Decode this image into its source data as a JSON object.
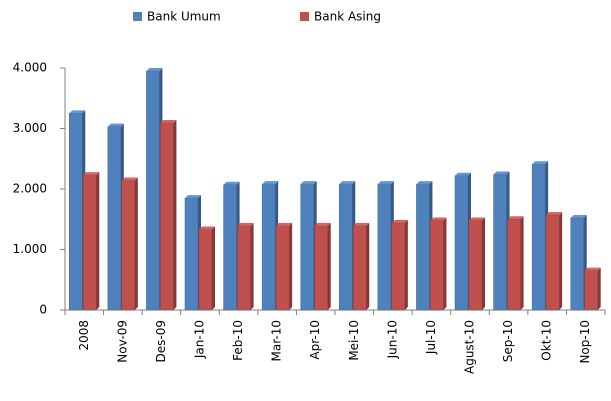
{
  "chart_data": {
    "type": "bar",
    "categories": [
      "2008",
      "Nov-09",
      "Des-09",
      "Jan-10",
      "Feb-10",
      "Mar-10",
      "Apr-10",
      "Mei-10",
      "Jun-10",
      "Jul-10",
      "Agust-10",
      "Sep-10",
      "Okt-10",
      "Nop-10"
    ],
    "series": [
      {
        "name": "Bank Umum",
        "color": "#4f81bd",
        "values": [
          3250,
          3030,
          3950,
          1850,
          2070,
          2080,
          2080,
          2080,
          2080,
          2080,
          2220,
          2240,
          2410,
          1520
        ]
      },
      {
        "name": "Bank Asing",
        "color": "#c0504d",
        "values": [
          2230,
          2140,
          3090,
          1330,
          1390,
          1390,
          1390,
          1390,
          1440,
          1480,
          1480,
          1500,
          1570,
          650
        ]
      }
    ],
    "ylim": [
      0,
      4000
    ],
    "yticks": [
      0,
      {
        "value": 1000,
        "label": "1.000"
      },
      {
        "value": 2000,
        "label": "2.000"
      },
      {
        "value": 3000,
        "label": "3.000"
      },
      {
        "value": 4000,
        "label": "4.000"
      }
    ],
    "grid": false,
    "legend": "top"
  }
}
